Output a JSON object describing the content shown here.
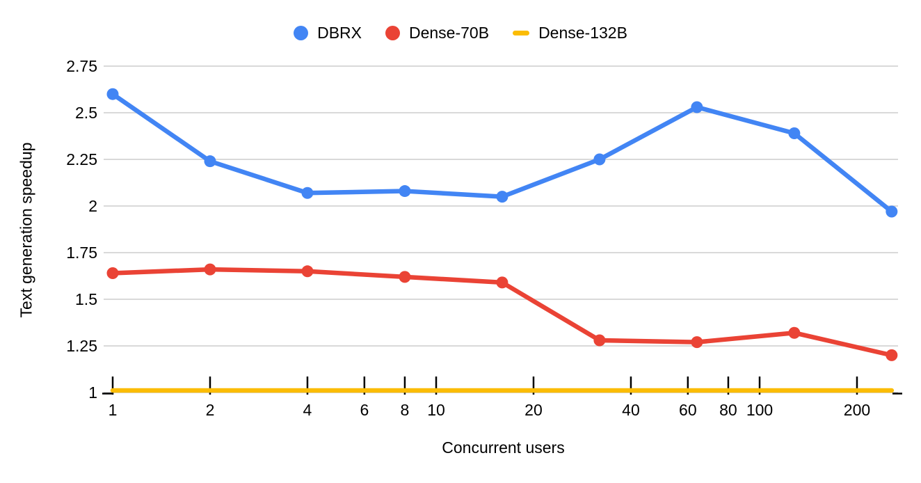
{
  "legend": {
    "items": [
      {
        "label": "DBRX",
        "color": "#4285F4",
        "marker": "circle"
      },
      {
        "label": "Dense-70B",
        "color": "#EA4335",
        "marker": "circle"
      },
      {
        "label": "Dense-132B",
        "color": "#FBBC04",
        "marker": "dash"
      }
    ]
  },
  "chart_data": {
    "type": "line",
    "title": "",
    "xlabel": "Concurrent users",
    "ylabel": "Text generation speedup",
    "x_scale": "log",
    "grid": true,
    "legend_position": "top",
    "x_ticks": [
      1,
      2,
      4,
      6,
      8,
      10,
      20,
      40,
      60,
      80,
      100,
      200
    ],
    "x_range": [
      1,
      260
    ],
    "y_ticks": [
      1,
      1.25,
      1.5,
      1.75,
      2,
      2.25,
      2.5,
      2.75
    ],
    "y_range": [
      1,
      2.75
    ],
    "x": [
      1,
      2,
      4,
      8,
      16,
      32,
      64,
      128,
      256
    ],
    "series": [
      {
        "name": "DBRX",
        "color": "#4285F4",
        "marker": "circle",
        "values": [
          2.6,
          2.24,
          2.07,
          2.08,
          2.05,
          2.25,
          2.53,
          2.39,
          1.97
        ]
      },
      {
        "name": "Dense-70B",
        "color": "#EA4335",
        "marker": "circle",
        "values": [
          1.64,
          1.66,
          1.65,
          1.62,
          1.59,
          1.28,
          1.27,
          1.32,
          1.2
        ]
      },
      {
        "name": "Dense-132B",
        "color": "#FBBC04",
        "marker": "none",
        "values": [
          1.0,
          1.0,
          1.0,
          1.0,
          1.0,
          1.0,
          1.0,
          1.0,
          1.0
        ]
      }
    ],
    "colors": {
      "grid": "#D9D9D9",
      "axis": "#000000",
      "text": "#000000",
      "background": "#FFFFFF"
    }
  }
}
